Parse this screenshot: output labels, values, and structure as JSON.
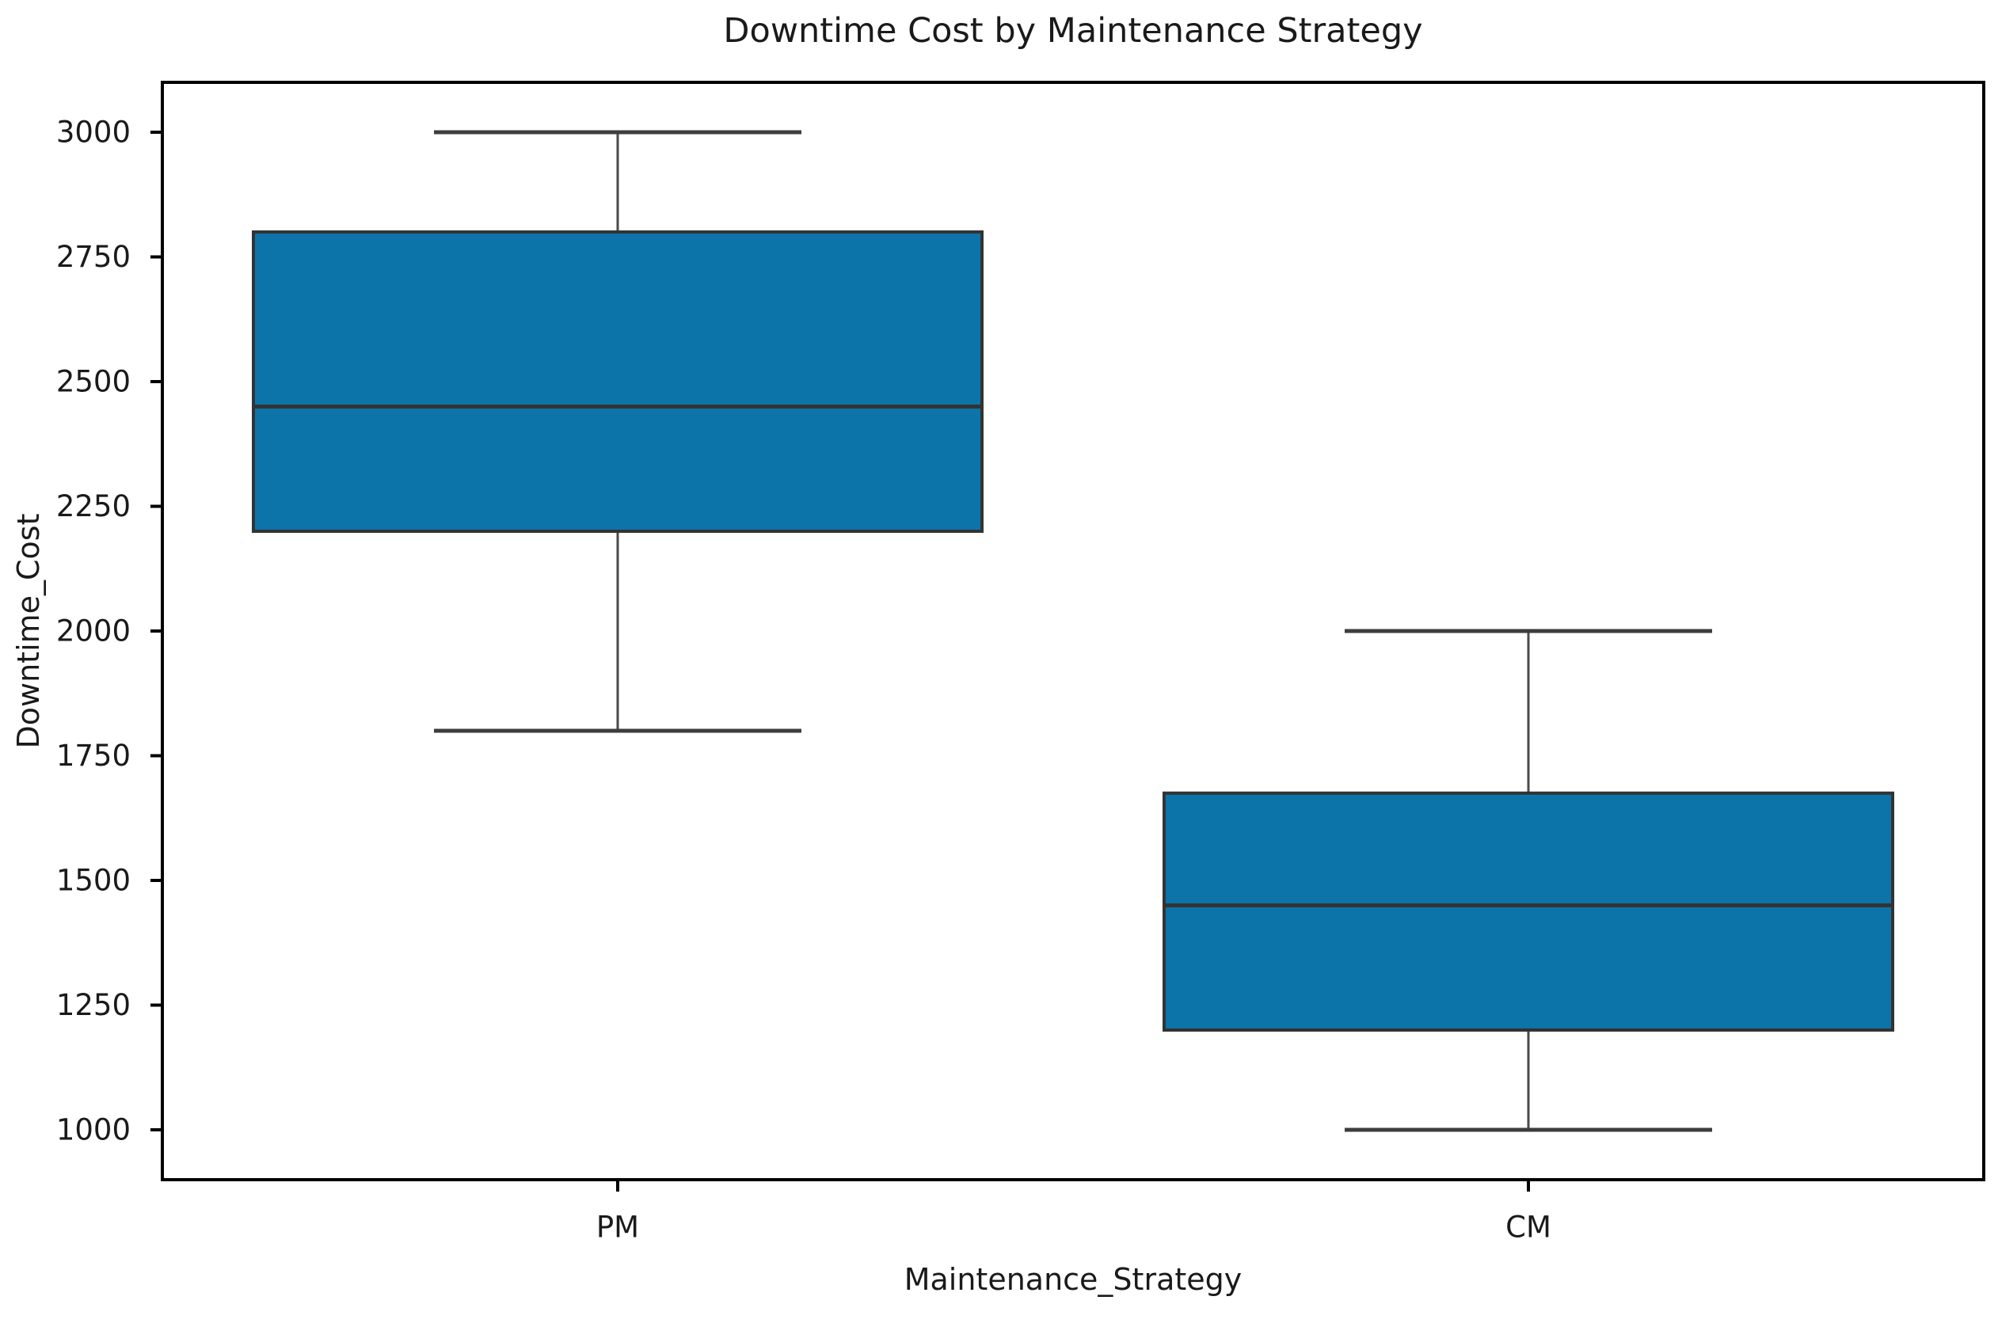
{
  "chart_data": {
    "type": "boxplot",
    "title": "Downtime Cost by Maintenance Strategy",
    "xlabel": "Maintenance_Strategy",
    "ylabel": "Downtime_Cost",
    "categories": [
      "PM",
      "CM"
    ],
    "series": [
      {
        "name": "PM",
        "whisker_low": 1800,
        "q1": 2200,
        "median": 2450,
        "q3": 2800,
        "whisker_high": 3000
      },
      {
        "name": "CM",
        "whisker_low": 1000,
        "q1": 1200,
        "median": 1450,
        "q3": 1675,
        "whisker_high": 2000
      }
    ],
    "ylim": [
      900,
      3100
    ],
    "yticks": [
      1000,
      1250,
      1500,
      1750,
      2000,
      2250,
      2500,
      2750,
      3000
    ],
    "grid": false,
    "legend": null,
    "colors": {
      "box_fill": "#0c74a9",
      "box_edge": "#333333",
      "whisker": "#4a4a4a",
      "median": "#333333",
      "cap": "#3d3d3d",
      "spine": "#000000",
      "tick_text": "#1a1a1a",
      "background": "#ffffff"
    }
  }
}
